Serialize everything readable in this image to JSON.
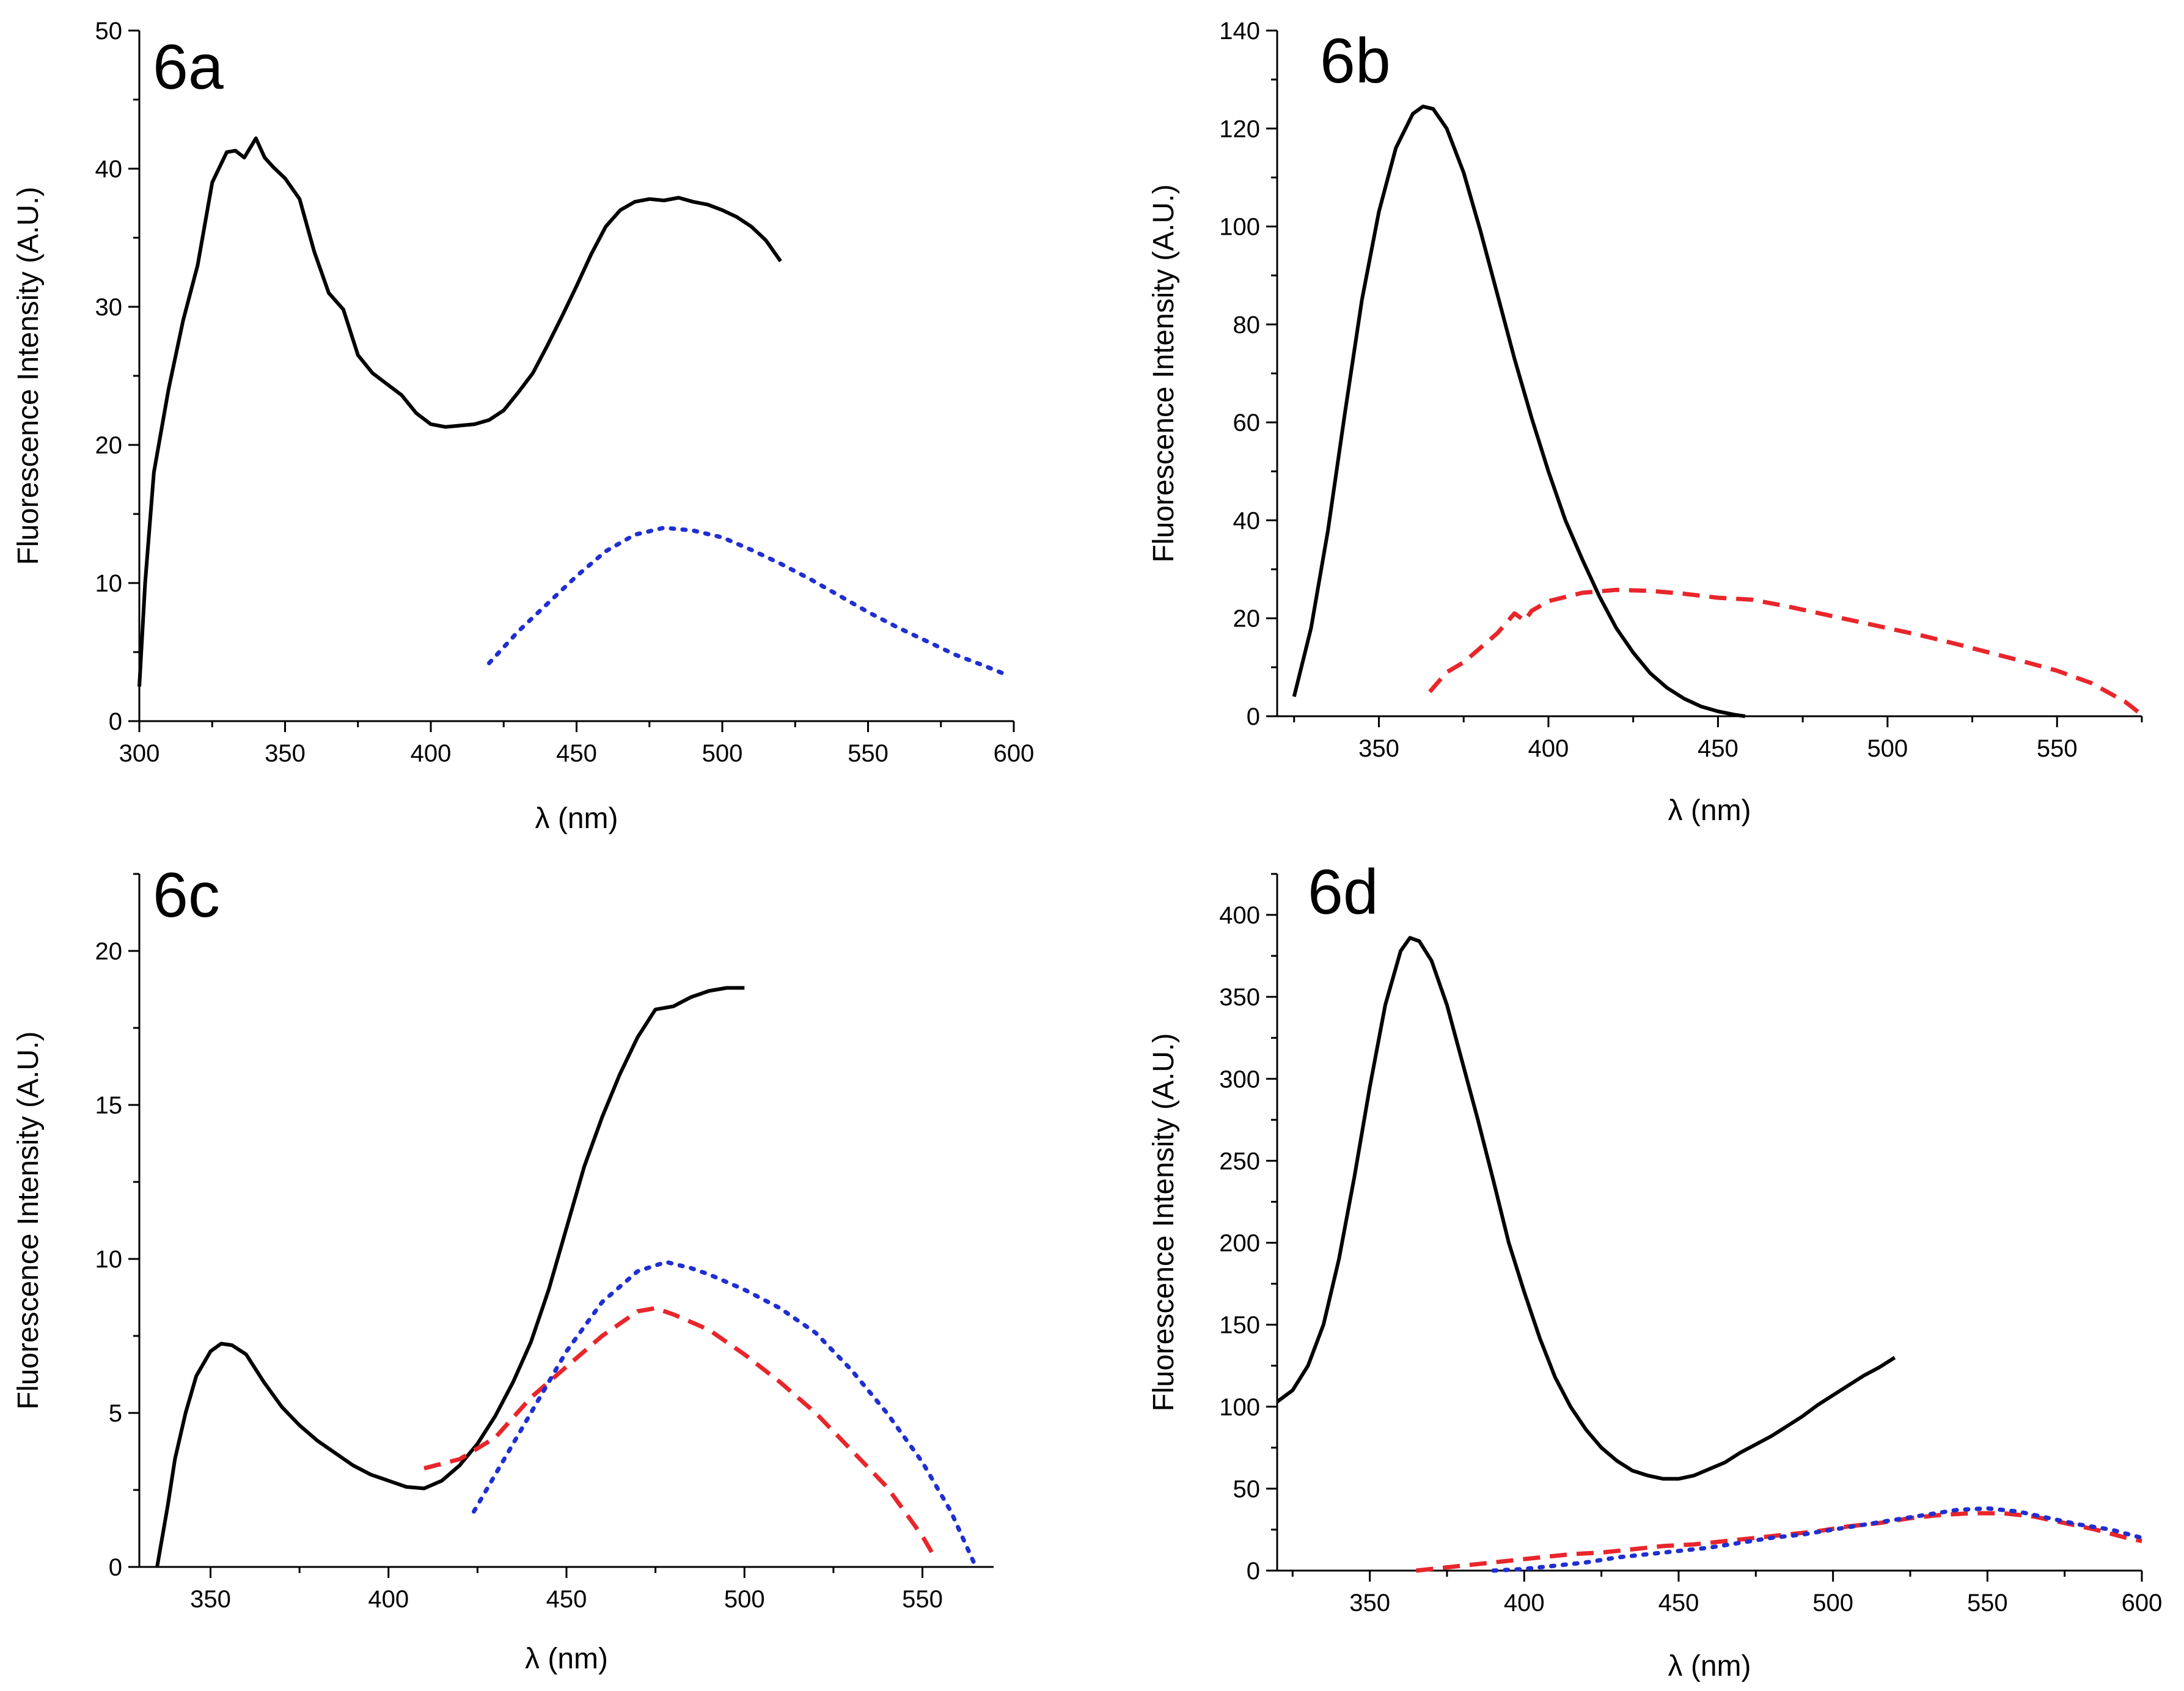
{
  "chart_data": [
    {
      "type": "line",
      "panel_label": "6a",
      "xlabel": "λ (nm)",
      "ylabel": "Fluorescence Intensity (A.U.)",
      "xlim": [
        300,
        600
      ],
      "ylim": [
        0,
        50
      ],
      "xticks": [
        300,
        350,
        400,
        450,
        500,
        550,
        600
      ],
      "yticks": [
        0,
        10,
        20,
        30,
        40,
        50
      ],
      "xtick_labels": [
        "300",
        "350",
        "400",
        "450",
        "500",
        "550",
        "600"
      ],
      "ytick_labels": [
        "0",
        "10",
        "20",
        "30",
        "40",
        "50"
      ],
      "series": [
        {
          "name": "solid",
          "color": "#000000",
          "style": "solid",
          "x": [
            300,
            302,
            305,
            310,
            315,
            320,
            325,
            330,
            333,
            336,
            340,
            343,
            346,
            350,
            355,
            360,
            365,
            370,
            375,
            380,
            385,
            390,
            395,
            400,
            405,
            410,
            415,
            420,
            425,
            430,
            435,
            440,
            445,
            450,
            455,
            460,
            465,
            470,
            475,
            480,
            485,
            490,
            495,
            500,
            505,
            510,
            515,
            520
          ],
          "y": [
            2.5,
            10,
            18,
            24,
            29,
            33,
            39,
            41.2,
            41.3,
            40.8,
            42.2,
            40.8,
            40.1,
            39.3,
            37.8,
            34,
            31,
            29.8,
            26.5,
            25.2,
            24.4,
            23.6,
            22.3,
            21.5,
            21.3,
            21.4,
            21.5,
            21.8,
            22.5,
            23.8,
            25.2,
            27.2,
            29.3,
            31.5,
            33.8,
            35.8,
            37,
            37.6,
            37.8,
            37.7,
            37.9,
            37.6,
            37.4,
            37,
            36.5,
            35.8,
            34.8,
            33.3
          ]
        },
        {
          "name": "dotted",
          "color": "#1f2fd1",
          "style": "dotted",
          "x": [
            420,
            430,
            440,
            450,
            460,
            470,
            480,
            490,
            500,
            510,
            520,
            530,
            540,
            550,
            560,
            570,
            580,
            590,
            597
          ],
          "y": [
            4.2,
            6.5,
            8.5,
            10.5,
            12.3,
            13.5,
            14,
            13.8,
            13.3,
            12.4,
            11.4,
            10.3,
            9.1,
            7.9,
            6.8,
            5.8,
            4.8,
            4,
            3.4
          ]
        }
      ]
    },
    {
      "type": "line",
      "panel_label": "6b",
      "xlabel": "λ (nm)",
      "ylabel": "Fluorescence Intensity (A.U.)",
      "xlim": [
        320,
        575
      ],
      "ylim": [
        0,
        140
      ],
      "xticks": [
        350,
        400,
        450,
        500,
        550
      ],
      "yticks": [
        0,
        20,
        40,
        60,
        80,
        100,
        120,
        140
      ],
      "xtick_labels": [
        "350",
        "400",
        "450",
        "500",
        "550"
      ],
      "ytick_labels": [
        "0",
        "20",
        "40",
        "60",
        "80",
        "100",
        "120",
        "140"
      ],
      "series": [
        {
          "name": "solid",
          "color": "#000000",
          "style": "solid",
          "x": [
            325,
            330,
            335,
            340,
            345,
            350,
            355,
            360,
            363,
            366,
            370,
            375,
            380,
            385,
            390,
            395,
            400,
            405,
            410,
            415,
            420,
            425,
            430,
            435,
            440,
            445,
            450,
            455,
            458
          ],
          "y": [
            4,
            18,
            38,
            62,
            85,
            103,
            116,
            123,
            124.5,
            124,
            120,
            111,
            99,
            86,
            73,
            61,
            50,
            40,
            32,
            24.5,
            18,
            13,
            8.8,
            5.8,
            3.6,
            2,
            1,
            0.3,
            0
          ]
        },
        {
          "name": "dashed",
          "color": "#e8262b",
          "style": "dashed",
          "x": [
            365,
            370,
            375,
            380,
            385,
            390,
            393,
            395,
            400,
            410,
            420,
            430,
            440,
            450,
            460,
            470,
            480,
            490,
            500,
            510,
            520,
            530,
            540,
            550,
            560,
            570,
            575
          ],
          "y": [
            5,
            9,
            11,
            14,
            17,
            21,
            19.5,
            21.5,
            23.5,
            25.2,
            25.8,
            25.6,
            25,
            24.2,
            23.8,
            22.5,
            21,
            19.5,
            18,
            16.5,
            14.8,
            13,
            11.2,
            9.3,
            6.8,
            3,
            0.3
          ]
        }
      ]
    },
    {
      "type": "line",
      "panel_label": "6c",
      "xlabel": "λ (nm)",
      "ylabel": "Fluorescence Intensity (A.U.)",
      "xlim": [
        330,
        570
      ],
      "ylim": [
        0,
        22.5
      ],
      "xticks": [
        350,
        400,
        450,
        500,
        550
      ],
      "yticks": [
        0,
        5,
        10,
        15,
        20
      ],
      "xtick_labels": [
        "350",
        "400",
        "450",
        "500",
        "550"
      ],
      "ytick_labels": [
        "0",
        "5",
        "10",
        "15",
        "20"
      ],
      "series": [
        {
          "name": "solid",
          "color": "#000000",
          "style": "solid",
          "x": [
            335,
            338,
            340,
            343,
            346,
            350,
            353,
            356,
            360,
            365,
            370,
            375,
            380,
            385,
            390,
            395,
            400,
            405,
            410,
            415,
            420,
            425,
            430,
            435,
            440,
            445,
            450,
            455,
            460,
            465,
            470,
            475,
            480,
            485,
            490,
            495,
            500
          ],
          "y": [
            0,
            2,
            3.5,
            5,
            6.2,
            7,
            7.25,
            7.2,
            6.9,
            6,
            5.2,
            4.6,
            4.1,
            3.7,
            3.3,
            3,
            2.8,
            2.6,
            2.55,
            2.8,
            3.3,
            4,
            4.9,
            6,
            7.3,
            9,
            11,
            13,
            14.6,
            16,
            17.2,
            18.1,
            18.2,
            18.5,
            18.7,
            18.8,
            18.8
          ]
        },
        {
          "name": "dashed",
          "color": "#e8262b",
          "style": "dashed",
          "x": [
            410,
            420,
            430,
            440,
            450,
            460,
            470,
            475,
            480,
            490,
            500,
            510,
            520,
            530,
            540,
            550,
            553
          ],
          "y": [
            3.2,
            3.5,
            4.2,
            5.5,
            6.5,
            7.5,
            8.3,
            8.4,
            8.2,
            7.7,
            6.9,
            6,
            5,
            3.8,
            2.6,
            1,
            0.4
          ]
        },
        {
          "name": "dotted",
          "color": "#1f2fd1",
          "style": "dotted",
          "x": [
            424,
            430,
            440,
            450,
            460,
            470,
            478,
            485,
            490,
            500,
            510,
            520,
            530,
            540,
            550,
            558,
            565
          ],
          "y": [
            1.8,
            3,
            5,
            7,
            8.6,
            9.6,
            9.9,
            9.7,
            9.5,
            9,
            8.4,
            7.6,
            6.4,
            5,
            3.4,
            1.8,
            0
          ]
        }
      ]
    },
    {
      "type": "line",
      "panel_label": "6d",
      "xlabel": "λ (nm)",
      "ylabel": "Fluorescence Intensity (A.U.)",
      "xlim": [
        320,
        600
      ],
      "ylim": [
        0,
        425
      ],
      "xticks": [
        350,
        400,
        450,
        500,
        550,
        600
      ],
      "yticks": [
        0,
        50,
        100,
        150,
        200,
        250,
        300,
        350,
        400
      ],
      "xtick_labels": [
        "350",
        "400",
        "450",
        "500",
        "550",
        "600"
      ],
      "ytick_labels": [
        "0",
        "50",
        "100",
        "150",
        "200",
        "250",
        "300",
        "350",
        "400"
      ],
      "series": [
        {
          "name": "solid",
          "color": "#000000",
          "style": "solid",
          "x": [
            320,
            325,
            330,
            335,
            340,
            345,
            350,
            355,
            360,
            363,
            366,
            370,
            375,
            380,
            385,
            390,
            395,
            400,
            405,
            410,
            415,
            420,
            425,
            430,
            435,
            440,
            445,
            450,
            455,
            460,
            465,
            470,
            475,
            480,
            485,
            490,
            495,
            500,
            505,
            510,
            515,
            520
          ],
          "y": [
            103,
            110,
            125,
            150,
            190,
            240,
            295,
            345,
            378,
            386,
            384,
            372,
            345,
            310,
            275,
            238,
            200,
            170,
            142,
            118,
            100,
            86,
            75,
            67,
            61,
            58,
            56,
            56,
            58,
            62,
            66,
            72,
            77,
            82,
            88,
            94,
            101,
            107,
            113,
            119,
            124,
            130
          ]
        },
        {
          "name": "dashed",
          "color": "#e8262b",
          "style": "dashed",
          "x": [
            365,
            375,
            385,
            395,
            405,
            415,
            425,
            435,
            445,
            455,
            465,
            475,
            485,
            495,
            505,
            515,
            525,
            535,
            545,
            555,
            565,
            575,
            585,
            595,
            600
          ],
          "y": [
            0,
            2,
            4,
            6,
            8,
            10,
            11,
            13,
            15,
            16,
            18,
            20,
            22,
            24,
            27,
            29,
            32,
            34,
            35,
            35,
            33,
            29,
            25,
            20,
            18
          ]
        },
        {
          "name": "dotted",
          "color": "#1f2fd1",
          "style": "dotted",
          "x": [
            390,
            400,
            410,
            420,
            430,
            440,
            450,
            460,
            470,
            480,
            490,
            500,
            510,
            520,
            530,
            540,
            550,
            560,
            570,
            580,
            590,
            600
          ],
          "y": [
            0,
            1,
            3,
            5,
            8,
            10,
            12,
            14,
            17,
            20,
            22,
            25,
            28,
            31,
            34,
            37,
            38,
            36,
            32,
            28,
            25,
            20
          ]
        }
      ]
    }
  ]
}
